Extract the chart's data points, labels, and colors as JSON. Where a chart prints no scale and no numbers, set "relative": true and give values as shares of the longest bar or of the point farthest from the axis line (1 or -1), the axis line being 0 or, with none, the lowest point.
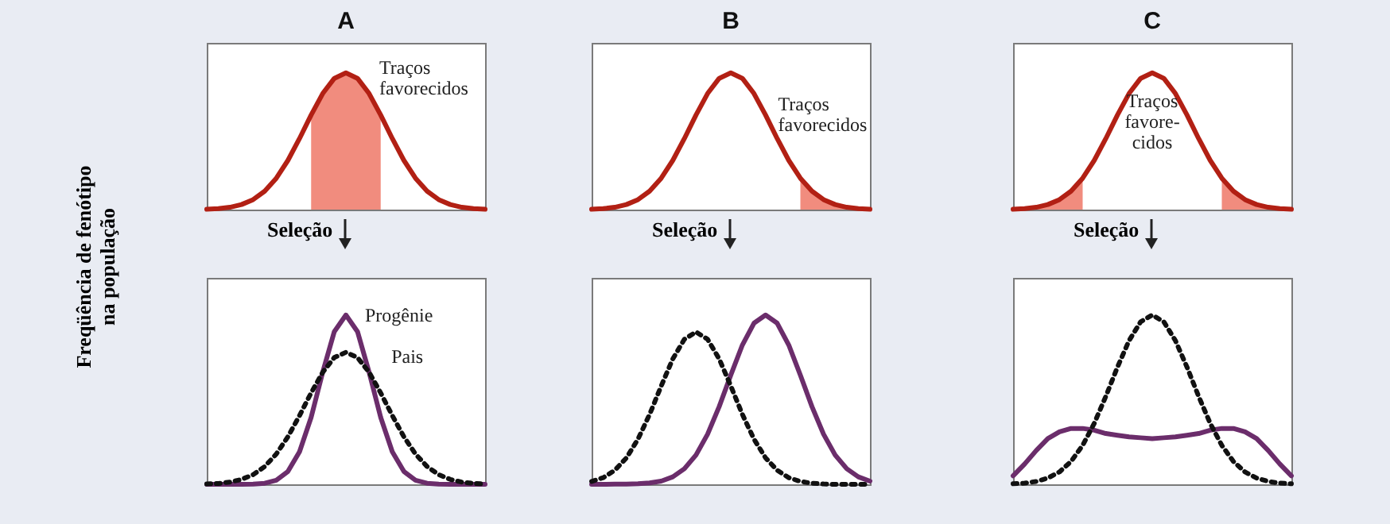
{
  "chart_data": [
    {
      "type": "line",
      "title": "A",
      "ylabel": "Freqüência de fenótipo na população",
      "relative": true,
      "annotations": [
        "Traços favorecidos",
        "Seleção"
      ],
      "categories": [
        null,
        null,
        null,
        null,
        null,
        null,
        null,
        null,
        null,
        null,
        null,
        null,
        null,
        null,
        null,
        null,
        null,
        null,
        null,
        null,
        null,
        null,
        null,
        null,
        null
      ],
      "series": [
        {
          "type": "area",
          "color": "#f08070",
          "values": [
            null,
            null,
            null,
            null,
            null,
            null,
            null,
            null,
            null,
            0.692,
            0.849,
            0.96,
            1,
            0.96,
            0.849,
            0.692,
            null,
            null,
            null,
            null,
            null,
            null,
            null,
            null,
            null
          ]
        },
        {
          "color": "#b22014",
          "values": [
            0.003,
            0.007,
            0.017,
            0.037,
            0.073,
            0.135,
            0.23,
            0.36,
            0.52,
            0.692,
            0.849,
            0.96,
            1,
            0.96,
            0.849,
            0.692,
            0.52,
            0.36,
            0.23,
            0.135,
            0.073,
            0.037,
            0.017,
            0.007,
            0.003
          ]
        }
      ]
    },
    {
      "type": "line",
      "title": "B",
      "relative": true,
      "annotations": [
        "Traços favorecidos",
        "Seleção"
      ],
      "categories": [
        null,
        null,
        null,
        null,
        null,
        null,
        null,
        null,
        null,
        null,
        null,
        null,
        null,
        null,
        null,
        null,
        null,
        null,
        null,
        null,
        null,
        null,
        null,
        null,
        null
      ],
      "series": [
        {
          "type": "area",
          "color": "#f08070",
          "values": [
            null,
            null,
            null,
            null,
            null,
            null,
            null,
            null,
            null,
            null,
            null,
            null,
            null,
            null,
            null,
            null,
            null,
            null,
            0.23,
            0.135,
            0.073,
            0.037,
            0.017,
            0.007,
            0.003
          ]
        },
        {
          "color": "#b22014",
          "values": [
            0.003,
            0.007,
            0.017,
            0.037,
            0.073,
            0.135,
            0.23,
            0.36,
            0.52,
            0.692,
            0.849,
            0.96,
            1,
            0.96,
            0.849,
            0.692,
            0.52,
            0.36,
            0.23,
            0.135,
            0.073,
            0.037,
            0.017,
            0.007,
            0.003
          ]
        }
      ]
    },
    {
      "type": "line",
      "title": "C",
      "relative": true,
      "annotations": [
        "Traços favore-cidos",
        "Seleção"
      ],
      "categories": [
        null,
        null,
        null,
        null,
        null,
        null,
        null,
        null,
        null,
        null,
        null,
        null,
        null,
        null,
        null,
        null,
        null,
        null,
        null,
        null,
        null,
        null,
        null,
        null,
        null
      ],
      "series": [
        {
          "type": "area",
          "color": "#f08070",
          "values": [
            0.003,
            0.007,
            0.017,
            0.037,
            0.073,
            0.135,
            0.23,
            null,
            null,
            null,
            null,
            null,
            null,
            null,
            null,
            null,
            null,
            null,
            0.23,
            0.135,
            0.073,
            0.037,
            0.017,
            0.007,
            0.003
          ]
        },
        {
          "color": "#b22014",
          "values": [
            0.003,
            0.007,
            0.017,
            0.037,
            0.073,
            0.135,
            0.23,
            0.36,
            0.52,
            0.692,
            0.849,
            0.96,
            1,
            0.96,
            0.849,
            0.692,
            0.52,
            0.36,
            0.23,
            0.135,
            0.073,
            0.037,
            0.017,
            0.007,
            0.003
          ]
        }
      ]
    },
    {
      "type": "line",
      "relative": true,
      "categories": [
        null,
        null,
        null,
        null,
        null,
        null,
        null,
        null,
        null,
        null,
        null,
        null,
        null,
        null,
        null,
        null,
        null,
        null,
        null,
        null,
        null,
        null,
        null,
        null,
        null
      ],
      "series": [
        {
          "name": "Progênie",
          "color": "#6b2d6b",
          "values": [
            0,
            0,
            0,
            0,
            0.001,
            0.006,
            0.024,
            0.076,
            0.192,
            0.395,
            0.662,
            0.902,
            1,
            0.902,
            0.662,
            0.395,
            0.192,
            0.076,
            0.024,
            0.006,
            0.001,
            0,
            0,
            0,
            0
          ]
        },
        {
          "name": "Pais",
          "color": "#111111",
          "line_style": "dotted",
          "values": [
            0.002,
            0.005,
            0.013,
            0.029,
            0.057,
            0.105,
            0.179,
            0.281,
            0.406,
            0.54,
            0.662,
            0.749,
            0.78,
            0.749,
            0.662,
            0.54,
            0.406,
            0.281,
            0.179,
            0.105,
            0.057,
            0.029,
            0.013,
            0.005,
            0.002
          ]
        }
      ]
    },
    {
      "type": "line",
      "relative": true,
      "categories": [
        null,
        null,
        null,
        null,
        null,
        null,
        null,
        null,
        null,
        null,
        null,
        null,
        null,
        null,
        null,
        null,
        null,
        null,
        null,
        null,
        null,
        null,
        null,
        null,
        null
      ],
      "series": [
        {
          "color": "#6b2d6b",
          "values": [
            0,
            0,
            0.001,
            0.001,
            0.003,
            0.008,
            0.019,
            0.044,
            0.092,
            0.173,
            0.296,
            0.459,
            0.645,
            0.823,
            0.952,
            1,
            0.952,
            0.823,
            0.645,
            0.459,
            0.296,
            0.173,
            0.092,
            0.044,
            0.019
          ]
        },
        {
          "color": "#111111",
          "line_style": "dotted",
          "values": [
            0.017,
            0.039,
            0.083,
            0.156,
            0.267,
            0.413,
            0.581,
            0.741,
            0.857,
            0.9,
            0.857,
            0.741,
            0.581,
            0.413,
            0.267,
            0.156,
            0.083,
            0.039,
            0.017,
            0.006,
            0.002,
            0,
            0,
            0,
            0
          ]
        }
      ]
    },
    {
      "type": "line",
      "relative": true,
      "categories": [
        null,
        null,
        null,
        null,
        null,
        null,
        null,
        null,
        null,
        null,
        null,
        null,
        null,
        null,
        null,
        null,
        null,
        null,
        null,
        null,
        null,
        null,
        null,
        null,
        null
      ],
      "series": [
        {
          "color": "#6b2d6b",
          "values": [
            0.05,
            0.12,
            0.2,
            0.27,
            0.31,
            0.33,
            0.33,
            0.32,
            0.3,
            0.29,
            0.28,
            0.275,
            0.27,
            0.275,
            0.28,
            0.29,
            0.3,
            0.32,
            0.33,
            0.33,
            0.31,
            0.27,
            0.2,
            0.12,
            0.05
          ]
        },
        {
          "color": "#111111",
          "line_style": "dotted",
          "values": [
            0.003,
            0.007,
            0.017,
            0.037,
            0.073,
            0.135,
            0.23,
            0.36,
            0.52,
            0.692,
            0.849,
            0.96,
            1,
            0.96,
            0.849,
            0.692,
            0.52,
            0.36,
            0.23,
            0.135,
            0.073,
            0.037,
            0.017,
            0.007,
            0.003
          ]
        }
      ]
    }
  ]
}
